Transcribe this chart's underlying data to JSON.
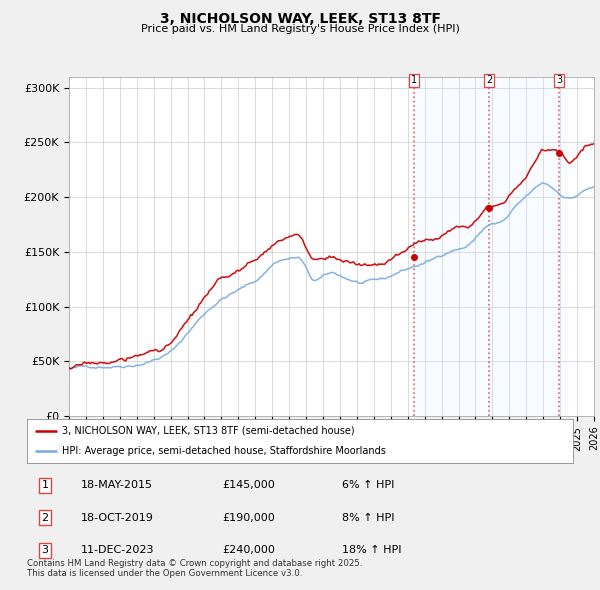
{
  "title": "3, NICHOLSON WAY, LEEK, ST13 8TF",
  "subtitle": "Price paid vs. HM Land Registry's House Price Index (HPI)",
  "ylabel_ticks": [
    "£0",
    "£50K",
    "£100K",
    "£150K",
    "£200K",
    "£250K",
    "£300K"
  ],
  "ytick_values": [
    0,
    50000,
    100000,
    150000,
    200000,
    250000,
    300000
  ],
  "ylim": [
    0,
    310000
  ],
  "xlim_start": 1995.0,
  "xlim_end": 2026.0,
  "sale_dates": [
    2015.38,
    2019.8,
    2023.95
  ],
  "sale_prices": [
    145000,
    190000,
    240000
  ],
  "sale_labels": [
    "1",
    "2",
    "3"
  ],
  "vline_color": "#dd4444",
  "shade_color": "#ddeeff",
  "legend_line1": "3, NICHOLSON WAY, LEEK, ST13 8TF (semi-detached house)",
  "legend_line2": "HPI: Average price, semi-detached house, Staffordshire Moorlands",
  "table_data": [
    [
      "1",
      "18-MAY-2015",
      "£145,000",
      "6% ↑ HPI"
    ],
    [
      "2",
      "18-OCT-2019",
      "£190,000",
      "8% ↑ HPI"
    ],
    [
      "3",
      "11-DEC-2023",
      "£240,000",
      "18% ↑ HPI"
    ]
  ],
  "footnote": "Contains HM Land Registry data © Crown copyright and database right 2025.\nThis data is licensed under the Open Government Licence v3.0.",
  "price_line_color": "#cc0000",
  "hpi_line_color": "#7aaadd",
  "background_color": "#f0f0f0",
  "plot_bg_color": "#ffffff",
  "grid_color": "#cccccc"
}
